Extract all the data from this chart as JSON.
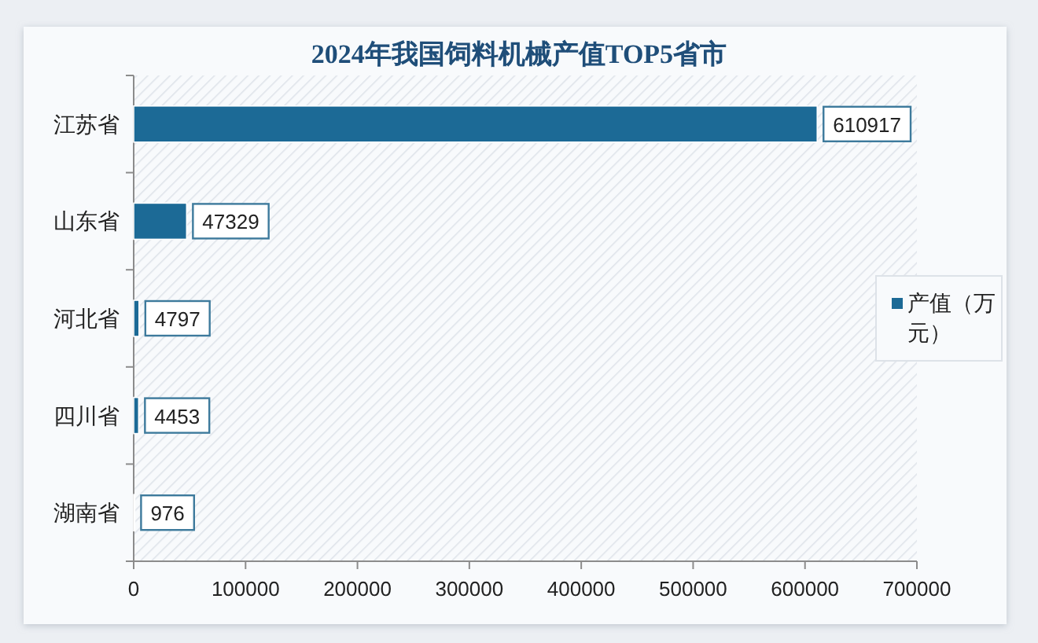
{
  "chart_data": {
    "type": "bar",
    "orientation": "horizontal",
    "title": "2024年我国饲料机械产值TOP5省市",
    "categories": [
      "江苏省",
      "山东省",
      "河北省",
      "四川省",
      "湖南省"
    ],
    "series": [
      {
        "name": "产值（万元）",
        "color": "#1c6a96",
        "values": [
          610917,
          47329,
          4797,
          4453,
          976
        ]
      }
    ],
    "xlim": [
      0,
      700000
    ],
    "xticks": [
      0,
      100000,
      200000,
      300000,
      400000,
      500000,
      600000,
      700000
    ],
    "data_labels": true,
    "legend": "right"
  }
}
